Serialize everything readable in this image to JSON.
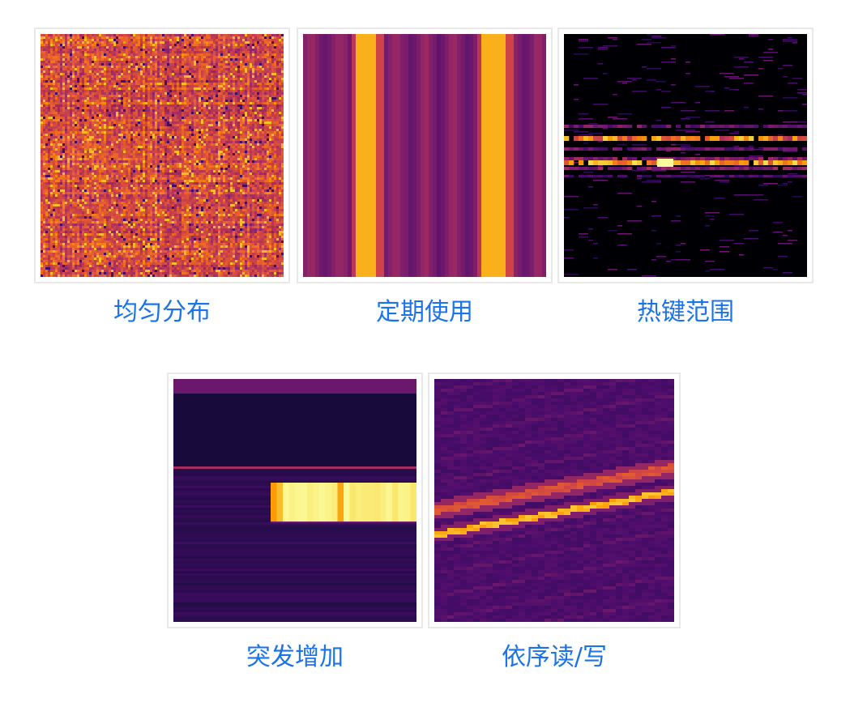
{
  "colors": {
    "caption": "#1a73e8",
    "tile_border": "#e8e8e8",
    "colormap": [
      "#000004",
      "#1b0c41",
      "#4a0c6b",
      "#781c6d",
      "#a52c60",
      "#cf4446",
      "#ed6925",
      "#fb9b06",
      "#f7d13d",
      "#fcffa4"
    ]
  },
  "panels": [
    {
      "id": "uniform",
      "caption": "均匀分布",
      "pattern": "uniform-random-grid"
    },
    {
      "id": "periodic",
      "caption": "定期使用",
      "pattern": "two-vertical-hot-bands"
    },
    {
      "id": "hotkey",
      "caption": "热键范围",
      "pattern": "narrow-horizontal-hot-bands"
    },
    {
      "id": "burst",
      "caption": "突发增加",
      "pattern": "sudden-hot-block"
    },
    {
      "id": "sequential",
      "caption": "依序读/写",
      "pattern": "diagonal-hot-streaks"
    }
  ]
}
